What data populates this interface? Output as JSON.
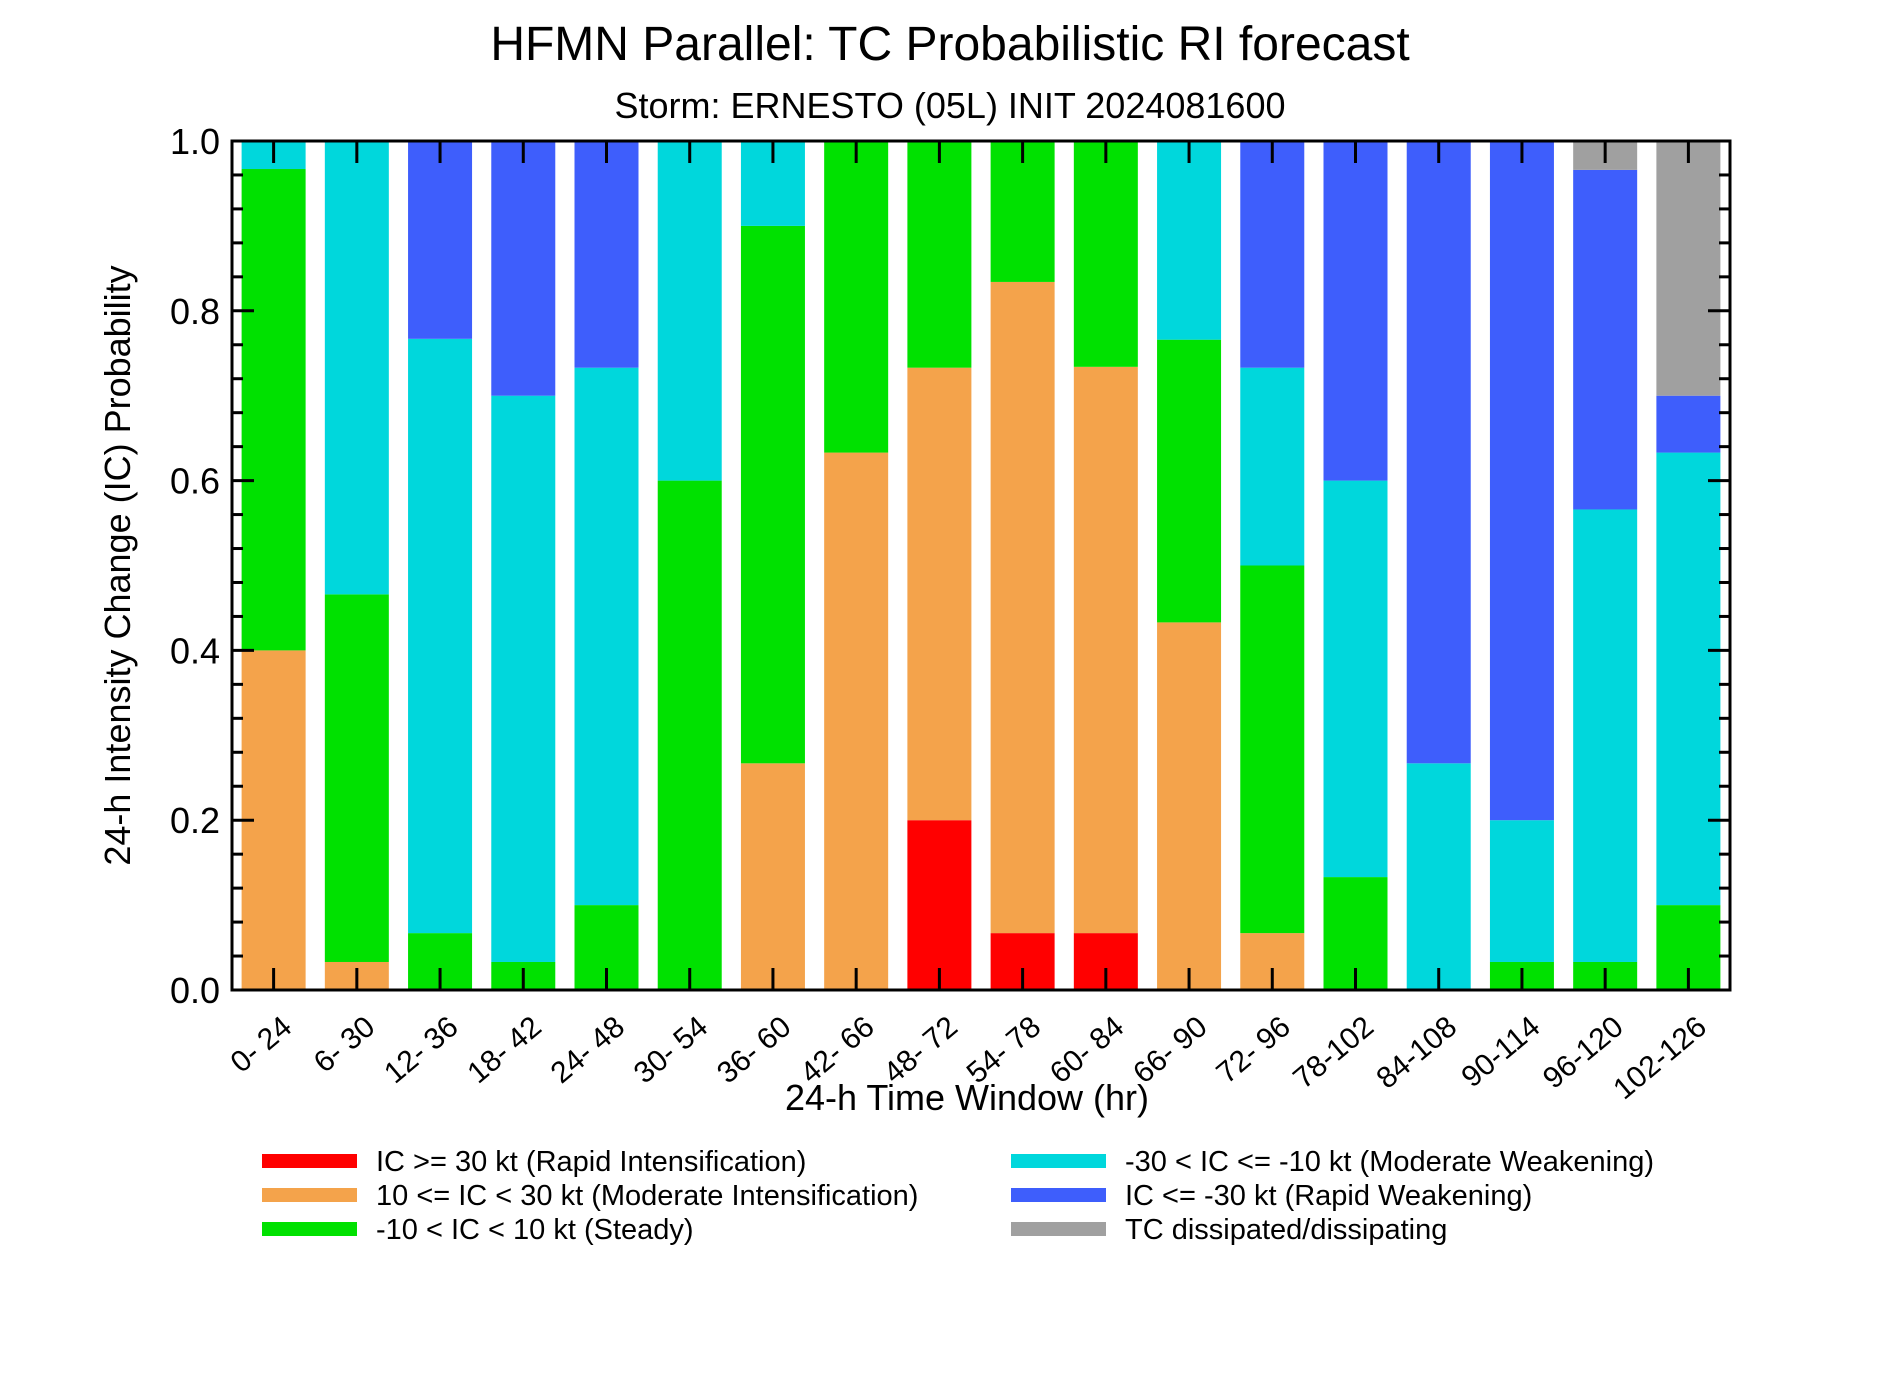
{
  "chart_data": {
    "type": "bar",
    "stacked": true,
    "title": "HFMN Parallel: TC Probabilistic RI forecast",
    "subtitle": "Storm: ERNESTO (05L) INIT 2024081600",
    "xlabel": "24-h Time Window (hr)",
    "ylabel": "24-h Intensity Change (IC) Probability",
    "ylim": [
      0,
      1
    ],
    "yticks": [
      "0.0",
      "0.2",
      "0.4",
      "0.6",
      "0.8",
      "1.0"
    ],
    "grid": false,
    "legend_placement": "bottom",
    "categories": [
      "0- 24",
      "6- 30",
      "12- 36",
      "18- 42",
      "24- 48",
      "30- 54",
      "36- 60",
      "42- 66",
      "48- 72",
      "54- 78",
      "60- 84",
      "66- 90",
      "72- 96",
      "78-102",
      "84-108",
      "90-114",
      "96-120",
      "102-126"
    ],
    "series": [
      {
        "name": "IC >= 30 kt (Rapid Intensification)",
        "color": "#ff0000",
        "values": [
          0,
          0,
          0,
          0,
          0,
          0,
          0,
          0,
          0.2,
          0.067,
          0.067,
          0,
          0,
          0,
          0,
          0,
          0,
          0
        ]
      },
      {
        "name": "10 <= IC < 30 kt (Moderate Intensification)",
        "color": "#f4a34b",
        "values": [
          0.4,
          0.033,
          0,
          0,
          0,
          0,
          0.267,
          0.633,
          0.533,
          0.767,
          0.667,
          0.433,
          0.067,
          0,
          0,
          0,
          0,
          0
        ]
      },
      {
        "name": "-10 < IC < 10 kt (Steady)",
        "color": "#00e100",
        "values": [
          0.567,
          0.433,
          0.067,
          0.033,
          0.1,
          0.6,
          0.633,
          0.367,
          0.267,
          0.167,
          0.267,
          0.333,
          0.433,
          0.133,
          0,
          0.033,
          0.033,
          0.1
        ]
      },
      {
        "name": "-30 < IC <= -10 kt (Moderate Weakening)",
        "color": "#00d7dc",
        "values": [
          0.033,
          0.534,
          0.7,
          0.667,
          0.633,
          0.4,
          0.1,
          0,
          0,
          0,
          0,
          0.234,
          0.233,
          0.467,
          0.267,
          0.167,
          0.533,
          0.533
        ]
      },
      {
        "name": "IC <= -30 kt (Rapid Weakening)",
        "color": "#3e5efc",
        "values": [
          0,
          0,
          0.233,
          0.3,
          0.267,
          0,
          0,
          0,
          0,
          0,
          0,
          0,
          0.267,
          0.4,
          0.733,
          0.8,
          0.4,
          0.067
        ]
      },
      {
        "name": "TC dissipated/dissipating",
        "color": "#a0a0a0",
        "values": [
          0,
          0,
          0,
          0,
          0,
          0,
          0,
          0,
          0,
          0,
          0,
          0,
          0,
          0,
          0,
          0,
          0.034,
          0.3
        ]
      }
    ]
  }
}
